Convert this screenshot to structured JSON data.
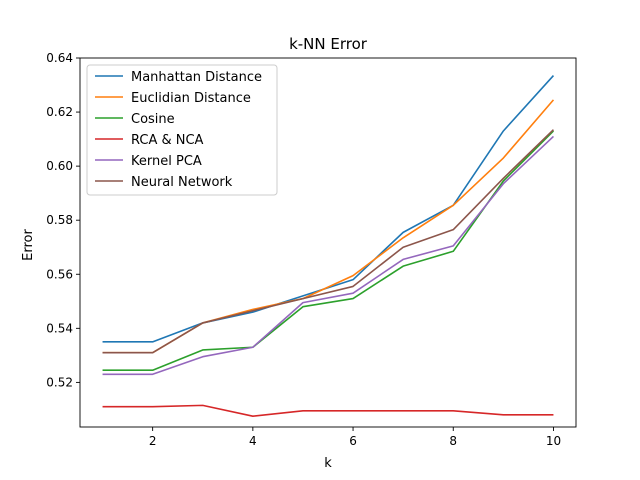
{
  "chart_data": {
    "type": "line",
    "title": "k-NN Error",
    "xlabel": "k",
    "ylabel": "Error",
    "x": [
      1,
      2,
      3,
      4,
      5,
      6,
      7,
      8,
      9,
      10
    ],
    "xlim": [
      0.55,
      10.45
    ],
    "ylim": [
      0.5035,
      0.64
    ],
    "xticks": [
      2,
      4,
      6,
      8,
      10
    ],
    "yticks": [
      0.52,
      0.54,
      0.56,
      0.58,
      0.6,
      0.62,
      0.64
    ],
    "ytick_labels": [
      "0.52",
      "0.54",
      "0.56",
      "0.58",
      "0.60",
      "0.62",
      "0.64"
    ],
    "grid": false,
    "legend_position": "top-left",
    "series": [
      {
        "name": "Manhattan Distance",
        "color": "#1f77b4",
        "values": [
          0.535,
          0.535,
          0.542,
          0.546,
          0.552,
          0.558,
          0.5755,
          0.5855,
          0.613,
          0.6335
        ]
      },
      {
        "name": "Euclidian Distance",
        "color": "#ff7f0e",
        "values": [
          0.531,
          0.531,
          0.542,
          0.547,
          0.551,
          0.5595,
          0.5735,
          0.5855,
          0.603,
          0.6245
        ]
      },
      {
        "name": "Cosine",
        "color": "#2ca02c",
        "values": [
          0.5245,
          0.5245,
          0.532,
          0.533,
          0.548,
          0.551,
          0.563,
          0.5685,
          0.5945,
          0.613
        ]
      },
      {
        "name": "RCA & NCA",
        "color": "#d62728",
        "values": [
          0.511,
          0.511,
          0.5115,
          0.5075,
          0.5095,
          0.5095,
          0.5095,
          0.5095,
          0.508,
          0.508
        ]
      },
      {
        "name": "Kernel PCA",
        "color": "#9467bd",
        "values": [
          0.523,
          0.523,
          0.5295,
          0.533,
          0.5495,
          0.553,
          0.5655,
          0.5705,
          0.5935,
          0.611
        ]
      },
      {
        "name": "Neural Network",
        "color": "#8c564b",
        "values": [
          0.531,
          0.531,
          0.542,
          0.5465,
          0.551,
          0.5555,
          0.57,
          0.5765,
          0.5955,
          0.6135
        ]
      }
    ]
  }
}
